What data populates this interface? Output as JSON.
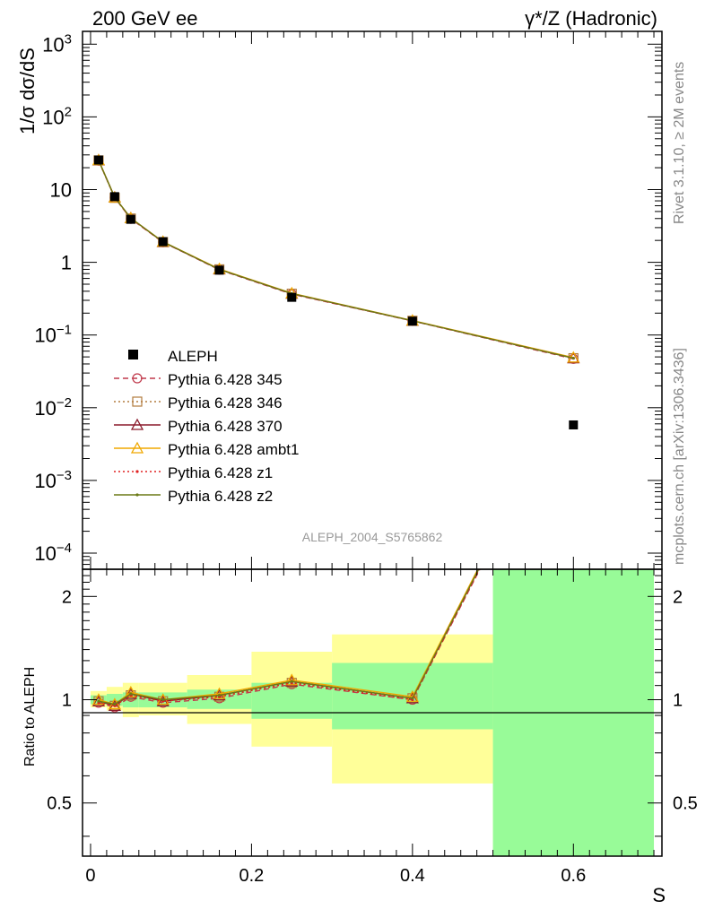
{
  "header": {
    "left_title": "200 GeV ee",
    "right_title": "γ*/Z (Hadronic)"
  },
  "side_labels": {
    "rivet": "Rivet 3.1.10, ≥ 2M events",
    "mcplots": "mcplots.cern.ch [arXiv:1306.3436]"
  },
  "watermark": "ALEPH_2004_S5765862",
  "chart_data": [
    {
      "type": "line",
      "panel": "main",
      "title": "",
      "ylabel": "1/σ dσ/dS",
      "yscale": "log",
      "ylim": [
        6e-05,
        1500
      ],
      "xlim": [
        -0.01,
        0.71
      ],
      "y_ticks": [
        {
          "v": 0.0001,
          "m": "10",
          "e": "−4"
        },
        {
          "v": 0.001,
          "m": "10",
          "e": "−3"
        },
        {
          "v": 0.01,
          "m": "10",
          "e": "−2"
        },
        {
          "v": 0.1,
          "m": "10",
          "e": "−1"
        },
        {
          "v": 1,
          "m": "1",
          "e": ""
        },
        {
          "v": 10,
          "m": "10",
          "e": ""
        },
        {
          "v": 100,
          "m": "10",
          "e": "2"
        },
        {
          "v": 1000,
          "m": "10",
          "e": "3"
        }
      ],
      "data_series": {
        "name": "ALEPH",
        "x": [
          0.01,
          0.03,
          0.05,
          0.09,
          0.16,
          0.25,
          0.4,
          0.6
        ],
        "y": [
          25.5,
          8.0,
          3.9,
          1.92,
          0.78,
          0.33,
          0.155,
          0.0058
        ]
      },
      "series": [
        {
          "name": "Pythia 6.428 345",
          "color": "#c0394b",
          "style": "dashed",
          "marker": "circle",
          "x": [
            0.01,
            0.03,
            0.05,
            0.09,
            0.16,
            0.25,
            0.4,
            0.6
          ],
          "y": [
            25.0,
            7.75,
            3.96,
            1.89,
            0.79,
            0.365,
            0.156,
            0.047
          ]
        },
        {
          "name": "Pythia 6.428 346",
          "color": "#b27b3e",
          "style": "dotted",
          "marker": "square",
          "x": [
            0.01,
            0.03,
            0.05,
            0.09,
            0.16,
            0.25,
            0.4,
            0.6
          ],
          "y": [
            25.2,
            7.7,
            4.0,
            1.9,
            0.8,
            0.37,
            0.157,
            0.048
          ]
        },
        {
          "name": "Pythia 6.428 370",
          "color": "#8b1a2b",
          "style": "solid",
          "marker": "triangle",
          "x": [
            0.01,
            0.03,
            0.05,
            0.09,
            0.16,
            0.25,
            0.4,
            0.6
          ],
          "y": [
            25.3,
            7.8,
            4.05,
            1.9,
            0.8,
            0.37,
            0.157,
            0.048
          ]
        },
        {
          "name": "Pythia 6.428 ambt1",
          "color": "#f0a800",
          "style": "solid",
          "marker": "triangle",
          "x": [
            0.01,
            0.03,
            0.05,
            0.09,
            0.16,
            0.25,
            0.4,
            0.6
          ],
          "y": [
            25.4,
            7.8,
            4.05,
            1.92,
            0.81,
            0.375,
            0.158,
            0.049
          ]
        },
        {
          "name": "Pythia 6.428 z1",
          "color": "#e02020",
          "style": "dotted",
          "marker": "dot",
          "x": [
            0.01,
            0.03,
            0.05,
            0.09,
            0.16,
            0.25,
            0.4,
            0.6
          ],
          "y": [
            25.1,
            7.8,
            4.0,
            1.9,
            0.8,
            0.37,
            0.156,
            0.048
          ]
        },
        {
          "name": "Pythia 6.428 z2",
          "color": "#6b7a16",
          "style": "solid",
          "marker": "dot",
          "x": [
            0.01,
            0.03,
            0.05,
            0.09,
            0.16,
            0.25,
            0.4,
            0.6
          ],
          "y": [
            25.3,
            7.8,
            4.05,
            1.91,
            0.8,
            0.372,
            0.157,
            0.048
          ]
        }
      ]
    },
    {
      "type": "line",
      "panel": "ratio",
      "ylabel": "Ratio to ALEPH",
      "xlabel": "S",
      "yscale": "log",
      "ylim": [
        0.35,
        2.4
      ],
      "xlim": [
        -0.01,
        0.71
      ],
      "x_ticks": [
        0,
        0.2,
        0.4,
        0.6
      ],
      "x_tick_labels": [
        "0",
        "0.2",
        "0.4",
        "0.6"
      ],
      "y_ticks": [
        0.5,
        1,
        2
      ],
      "y_tick_labels": [
        "0.5",
        "1",
        "2"
      ],
      "uncertainty_bands": [
        {
          "x0": 0.0,
          "x1": 0.02,
          "stat_lo": 0.97,
          "stat_hi": 1.03,
          "tot_lo": 0.95,
          "tot_hi": 1.06
        },
        {
          "x0": 0.02,
          "x1": 0.04,
          "stat_lo": 0.96,
          "stat_hi": 1.04,
          "tot_lo": 0.93,
          "tot_hi": 1.09
        },
        {
          "x0": 0.04,
          "x1": 0.06,
          "stat_lo": 0.95,
          "stat_hi": 1.05,
          "tot_lo": 0.89,
          "tot_hi": 1.12
        },
        {
          "x0": 0.06,
          "x1": 0.12,
          "stat_lo": 0.95,
          "stat_hi": 1.05,
          "tot_lo": 0.9,
          "tot_hi": 1.12
        },
        {
          "x0": 0.12,
          "x1": 0.2,
          "stat_lo": 0.94,
          "stat_hi": 1.07,
          "tot_lo": 0.85,
          "tot_hi": 1.18
        },
        {
          "x0": 0.2,
          "x1": 0.3,
          "stat_lo": 0.88,
          "stat_hi": 1.12,
          "tot_lo": 0.73,
          "tot_hi": 1.38
        },
        {
          "x0": 0.3,
          "x1": 0.5,
          "stat_lo": 0.82,
          "stat_hi": 1.28,
          "tot_lo": 0.57,
          "tot_hi": 1.55
        },
        {
          "x0": 0.5,
          "x1": 0.7,
          "stat_lo": 0.3,
          "stat_hi": 3.0,
          "tot_lo": 0.3,
          "tot_hi": 3.0
        }
      ],
      "band_colors": {
        "stat": "#98fb98",
        "total": "#ffff99"
      },
      "series": [
        {
          "name": "Pythia 6.428 345",
          "x": [
            0.01,
            0.03,
            0.05,
            0.09,
            0.16,
            0.25,
            0.4,
            0.6
          ],
          "y": [
            0.98,
            0.95,
            1.02,
            0.98,
            1.01,
            1.11,
            1.0,
            8.1
          ]
        },
        {
          "name": "Pythia 6.428 346",
          "x": [
            0.01,
            0.03,
            0.05,
            0.09,
            0.16,
            0.25,
            0.4,
            0.6
          ],
          "y": [
            0.99,
            0.96,
            1.03,
            0.99,
            1.02,
            1.12,
            1.01,
            8.3
          ]
        },
        {
          "name": "Pythia 6.428 370",
          "x": [
            0.01,
            0.03,
            0.05,
            0.09,
            0.16,
            0.25,
            0.4,
            0.6
          ],
          "y": [
            0.99,
            0.96,
            1.04,
            0.99,
            1.03,
            1.13,
            1.01,
            8.3
          ]
        },
        {
          "name": "Pythia 6.428 ambt1",
          "x": [
            0.01,
            0.03,
            0.05,
            0.09,
            0.16,
            0.25,
            0.4,
            0.6
          ],
          "y": [
            1.0,
            0.97,
            1.05,
            1.0,
            1.04,
            1.14,
            1.02,
            8.4
          ]
        },
        {
          "name": "Pythia 6.428 z1",
          "x": [
            0.01,
            0.03,
            0.05,
            0.09,
            0.16,
            0.25,
            0.4,
            0.6
          ],
          "y": [
            0.98,
            0.96,
            1.03,
            0.99,
            1.02,
            1.12,
            1.0,
            8.2
          ]
        },
        {
          "name": "Pythia 6.428 z2",
          "x": [
            0.01,
            0.03,
            0.05,
            0.09,
            0.16,
            0.25,
            0.4,
            0.6
          ],
          "y": [
            0.99,
            0.97,
            1.04,
            1.0,
            1.03,
            1.13,
            1.01,
            8.3
          ]
        }
      ]
    }
  ]
}
